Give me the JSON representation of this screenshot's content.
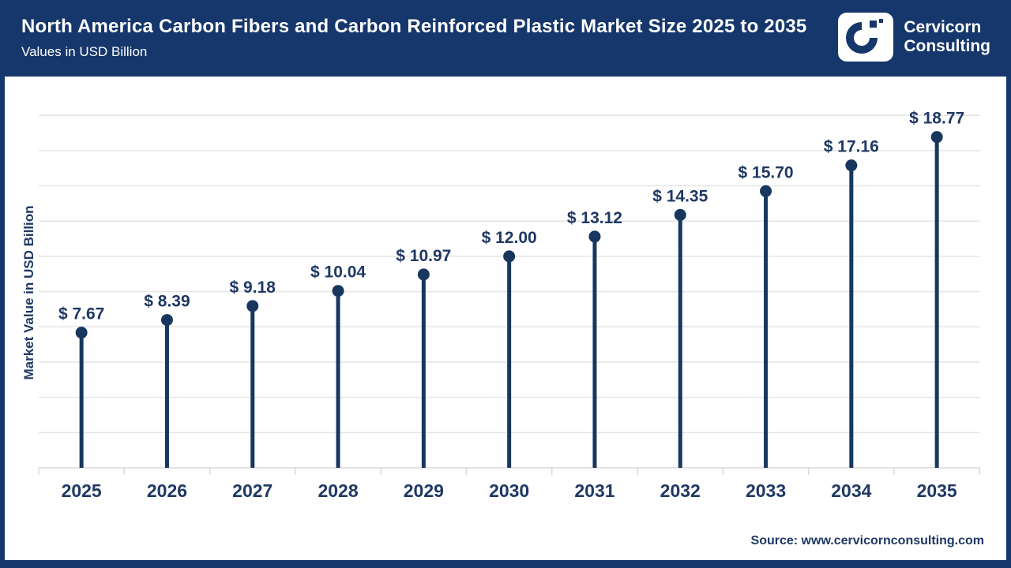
{
  "header": {
    "title": "North America Carbon Fibers and Carbon Reinforced Plastic Market Size 2025 to 2035",
    "subtitle": "Values in USD Billion",
    "brand": {
      "line1": "Cervicorn",
      "line2": "Consulting"
    }
  },
  "chart_data": {
    "type": "scatter",
    "variant": "lollipop",
    "title": "North America Carbon Fibers and Carbon Reinforced Plastic Market Size 2025 to 2035",
    "subtitle": "Values in USD Billion",
    "categories": [
      "2025",
      "2026",
      "2027",
      "2028",
      "2029",
      "2030",
      "2031",
      "2032",
      "2033",
      "2034",
      "2035"
    ],
    "values": [
      7.67,
      8.39,
      9.18,
      10.04,
      10.97,
      12.0,
      13.12,
      14.35,
      15.7,
      17.16,
      18.77
    ],
    "labels": [
      "$ 7.67",
      "$ 8.39",
      "$ 9.18",
      "$ 10.04",
      "$ 10.97",
      "$ 12.00",
      "$ 13.12",
      "$ 14.35",
      "$ 15.70",
      "$ 17.16",
      "$ 18.77"
    ],
    "xlabel": "",
    "ylabel": "Market Value in USD Billion",
    "ylim": [
      0,
      20
    ],
    "gridline_step": 2,
    "grid": "horizontal-only",
    "y_tick_labels_visible": false,
    "legend": "none"
  },
  "footer": {
    "source": "Source: www.cervicornconsulting.com"
  },
  "colors": {
    "navy_frame": "#16376b",
    "navy_element": "#17375e",
    "navy_text": "#1f3864",
    "gridline": "#e4e4e4",
    "axis": "#d9d9d9",
    "background": "#ffffff"
  }
}
